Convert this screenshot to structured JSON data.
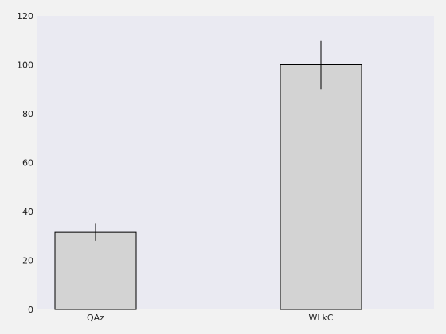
{
  "chart_data": {
    "type": "bar",
    "title": "",
    "xlabel": "",
    "ylabel": "",
    "categories": [
      "QAz",
      "WLkC"
    ],
    "values": [
      31.5,
      100
    ],
    "error": [
      3.5,
      10
    ],
    "ylim": [
      0,
      120
    ],
    "yticks": [
      "0",
      "20",
      "40",
      "60",
      "80",
      "100",
      "120"
    ],
    "grid": false,
    "colors": {
      "plot_background": "#eaeaf2",
      "page_background": "#f2f2f2",
      "bar_fill": "#d3d3d3",
      "bar_edge": "#000000",
      "error_bar": "#000000"
    }
  }
}
